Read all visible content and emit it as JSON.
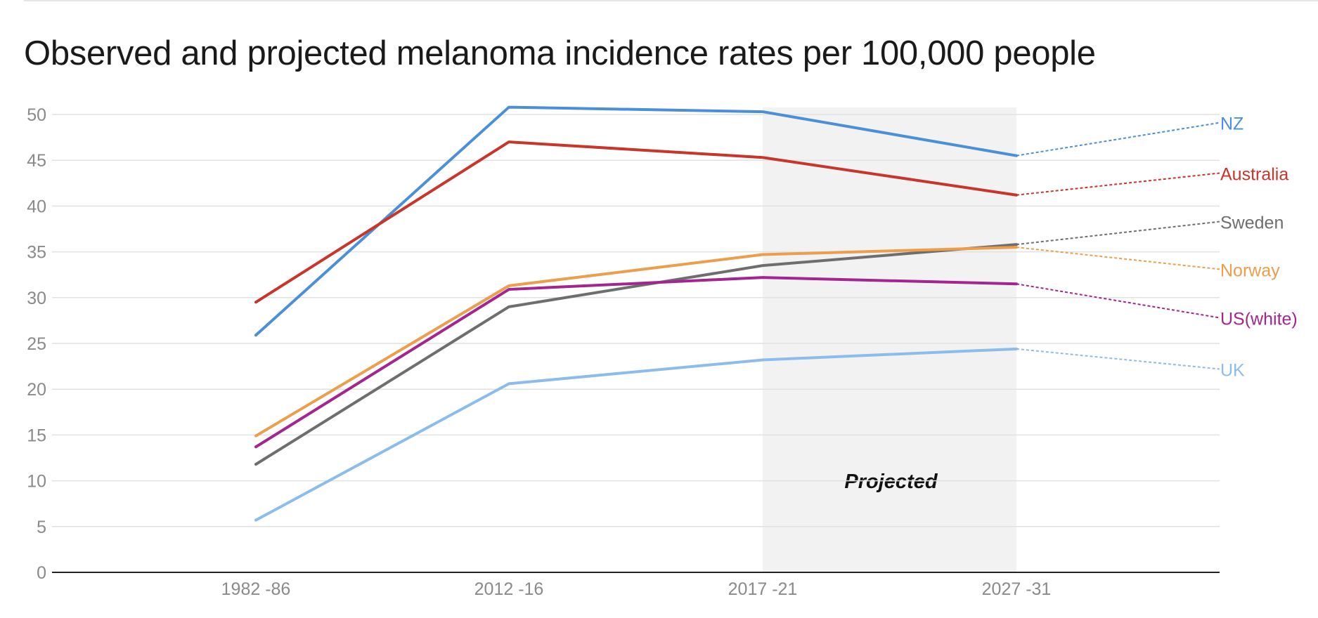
{
  "chart_data": {
    "type": "line",
    "title": "Observed and projected melanoma incidence rates per 100,000 people",
    "xlabel": "",
    "ylabel": "",
    "categories": [
      "1982 -86",
      "2012 -16",
      "2017 -21",
      "2027 -31"
    ],
    "ylim": [
      0,
      50
    ],
    "yticks": [
      0,
      5,
      10,
      15,
      20,
      25,
      30,
      35,
      40,
      45,
      50
    ],
    "grid": true,
    "projected_region": {
      "label": "Projected",
      "from_category": "2017 -21",
      "to_category": "2027 -31",
      "color": "#f2f2f2"
    },
    "series": [
      {
        "name": "NZ",
        "color": "#4a8fd8",
        "values": [
          25.9,
          50.8,
          50.3,
          45.5
        ],
        "label_value": 49.1
      },
      {
        "name": "Australia",
        "color": "#c8352b",
        "values": [
          29.5,
          47.0,
          45.3,
          41.2
        ],
        "label_value": 43.6
      },
      {
        "name": "Sweden",
        "color": "#6e6e6e",
        "values": [
          11.8,
          29.0,
          33.5,
          35.8
        ],
        "label_value": 38.3
      },
      {
        "name": "Norway",
        "color": "#eb9e4b",
        "values": [
          14.9,
          31.3,
          34.7,
          35.5
        ],
        "label_value": 33.1
      },
      {
        "name": "US(white)",
        "color": "#a3258f",
        "values": [
          13.7,
          30.9,
          32.2,
          31.5
        ],
        "label_value": 27.8
      },
      {
        "name": "UK",
        "color": "#8cbcec",
        "values": [
          5.7,
          20.6,
          23.2,
          24.4
        ],
        "label_value": 22.2
      }
    ],
    "colors": {
      "axis": "#222222",
      "grid": "#e1e1e1",
      "tick_text": "#8a8a8a"
    }
  }
}
